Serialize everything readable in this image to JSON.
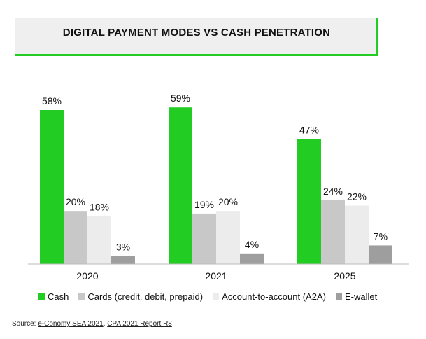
{
  "chart_data": {
    "type": "bar",
    "title": "DIGITAL PAYMENT MODES VS CASH PENETRATION",
    "categories": [
      "2020",
      "2021",
      "2025"
    ],
    "series": [
      {
        "name": "Cash",
        "color": "#22cc22",
        "values": [
          58,
          59,
          47
        ],
        "labels": [
          "58%",
          "59%",
          "47%"
        ]
      },
      {
        "name": "Cards (credit, debit, prepaid)",
        "color": "#c8c8c8",
        "values": [
          20,
          19,
          24
        ],
        "labels": [
          "20%",
          "19%",
          "24%"
        ]
      },
      {
        "name": "Account-to-account (A2A)",
        "color": "#ececec",
        "values": [
          18,
          20,
          22
        ],
        "labels": [
          "18%",
          "20%",
          "22%"
        ]
      },
      {
        "name": "E-wallet",
        "color": "#9e9e9e",
        "values": [
          3,
          4,
          7
        ],
        "labels": [
          "3%",
          "4%",
          "7%"
        ]
      }
    ],
    "ylim": [
      0,
      60
    ],
    "grid": false,
    "legend_position": "bottom"
  },
  "source": {
    "prefix": "Source: ",
    "link1": "e-Conomy SEA 2021",
    "separator": ", ",
    "link2": "CPA 2021 Report R8"
  }
}
